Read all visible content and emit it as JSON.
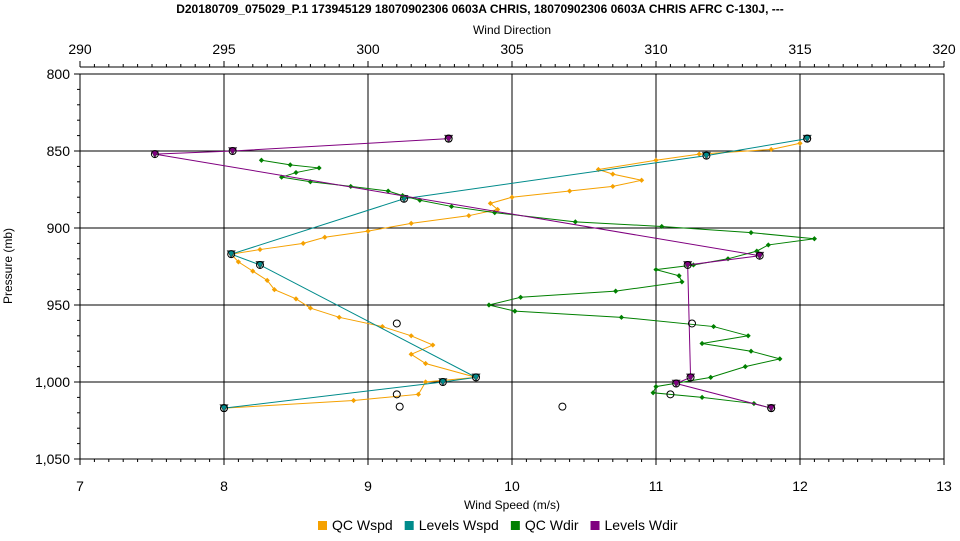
{
  "chart_data": {
    "type": "line",
    "title": "D20180709_075029_P.1 173945129 18070902306 0603A CHRIS, 18070902306 0603A CHRIS AFRC C-130J, ---",
    "xlabel": "Wind Speed (m/s)",
    "x2label": "Wind Direction",
    "ylabel": "Pressure (mb)",
    "xlim": [
      7,
      13
    ],
    "x2lim": [
      290,
      320
    ],
    "ylim": [
      800,
      1050
    ],
    "y_inverted": true,
    "grid": true,
    "legend_position": "bottom",
    "x_ticks": [
      7,
      8,
      9,
      10,
      11,
      12,
      13
    ],
    "x_tick_labels": [
      "7",
      "8",
      "9",
      "10",
      "11",
      "12",
      "13"
    ],
    "x2_ticks": [
      290,
      295,
      300,
      305,
      310,
      315,
      320
    ],
    "x2_tick_labels": [
      "290",
      "295",
      "300",
      "305",
      "310",
      "315",
      "320"
    ],
    "y_ticks": [
      800,
      850,
      900,
      950,
      1000,
      1050
    ],
    "y_tick_labels": [
      "800",
      "850",
      "900",
      "950",
      "1,000",
      "1,050"
    ],
    "series": [
      {
        "name": "QC Wspd",
        "axis": "bottom",
        "color": "#F5A100",
        "marker": "diamond",
        "points": [
          [
            12.0,
            845
          ],
          [
            11.8,
            849
          ],
          [
            11.3,
            852
          ],
          [
            11.0,
            856
          ],
          [
            10.6,
            862
          ],
          [
            10.7,
            865
          ],
          [
            10.9,
            869
          ],
          [
            10.7,
            873
          ],
          [
            10.4,
            876
          ],
          [
            10.0,
            880
          ],
          [
            9.85,
            884
          ],
          [
            9.9,
            888
          ],
          [
            9.7,
            892
          ],
          [
            9.3,
            897
          ],
          [
            9.0,
            902
          ],
          [
            8.7,
            906
          ],
          [
            8.55,
            910
          ],
          [
            8.25,
            914
          ],
          [
            8.05,
            917
          ],
          [
            8.1,
            922
          ],
          [
            8.2,
            928
          ],
          [
            8.3,
            934
          ],
          [
            8.35,
            940
          ],
          [
            8.5,
            946
          ],
          [
            8.6,
            952
          ],
          [
            8.8,
            958
          ],
          [
            9.1,
            964
          ],
          [
            9.3,
            970
          ],
          [
            9.45,
            976
          ],
          [
            9.3,
            982
          ],
          [
            9.4,
            988
          ],
          [
            9.75,
            997
          ],
          [
            9.4,
            1000
          ],
          [
            9.35,
            1008
          ],
          [
            8.9,
            1012
          ],
          [
            8.0,
            1017
          ]
        ]
      },
      {
        "name": "Levels Wspd",
        "axis": "bottom",
        "color": "#008B8B",
        "marker": "triangle",
        "points": [
          [
            12.05,
            842
          ],
          [
            11.35,
            853
          ],
          [
            9.25,
            881
          ],
          [
            8.05,
            917
          ],
          [
            8.25,
            924
          ],
          [
            9.75,
            997
          ],
          [
            9.52,
            1000
          ],
          [
            8.0,
            1017
          ]
        ]
      },
      {
        "name": "QC Wdir",
        "axis": "top",
        "color": "#008000",
        "marker": "diamond",
        "points": [
          [
            296.3,
            856
          ],
          [
            297.3,
            859
          ],
          [
            298.3,
            861
          ],
          [
            297.5,
            864
          ],
          [
            297.0,
            867
          ],
          [
            298.0,
            870
          ],
          [
            299.4,
            873
          ],
          [
            300.7,
            876
          ],
          [
            301.2,
            879
          ],
          [
            301.8,
            882
          ],
          [
            302.9,
            886
          ],
          [
            304.4,
            890
          ],
          [
            307.2,
            896
          ],
          [
            310.2,
            899
          ],
          [
            313.3,
            903
          ],
          [
            315.5,
            907
          ],
          [
            313.9,
            911
          ],
          [
            313.5,
            915
          ],
          [
            312.5,
            920
          ],
          [
            311.3,
            924
          ],
          [
            310.0,
            927
          ],
          [
            310.8,
            931
          ],
          [
            310.9,
            935
          ],
          [
            308.6,
            941
          ],
          [
            305.3,
            945
          ],
          [
            304.2,
            950
          ],
          [
            305.1,
            954
          ],
          [
            308.8,
            958
          ],
          [
            312.0,
            964
          ],
          [
            313.2,
            970
          ],
          [
            311.6,
            975
          ],
          [
            313.3,
            980
          ],
          [
            314.3,
            985
          ],
          [
            313.1,
            990
          ],
          [
            311.9,
            997
          ],
          [
            310.0,
            1003
          ],
          [
            309.9,
            1007
          ],
          [
            311.6,
            1010
          ],
          [
            313.4,
            1014
          ],
          [
            314.0,
            1017
          ]
        ]
      },
      {
        "name": "Levels Wdir",
        "axis": "top",
        "color": "#800080",
        "marker": "triangle",
        "points": [
          [
            302.8,
            842
          ],
          [
            295.3,
            850
          ],
          [
            292.6,
            852
          ],
          [
            313.6,
            918
          ],
          [
            311.1,
            924
          ],
          [
            311.2,
            997
          ],
          [
            310.7,
            1001
          ],
          [
            314.0,
            1017
          ]
        ]
      },
      {
        "name": "",
        "axis": "bottom",
        "color": "#000000",
        "marker": "open-circle",
        "points": [
          [
            9.2,
            962
          ],
          [
            9.2,
            1008
          ],
          [
            9.22,
            1016
          ],
          [
            10.35,
            1016
          ],
          [
            11.1,
            1008
          ],
          [
            11.25,
            962
          ]
        ]
      }
    ]
  }
}
